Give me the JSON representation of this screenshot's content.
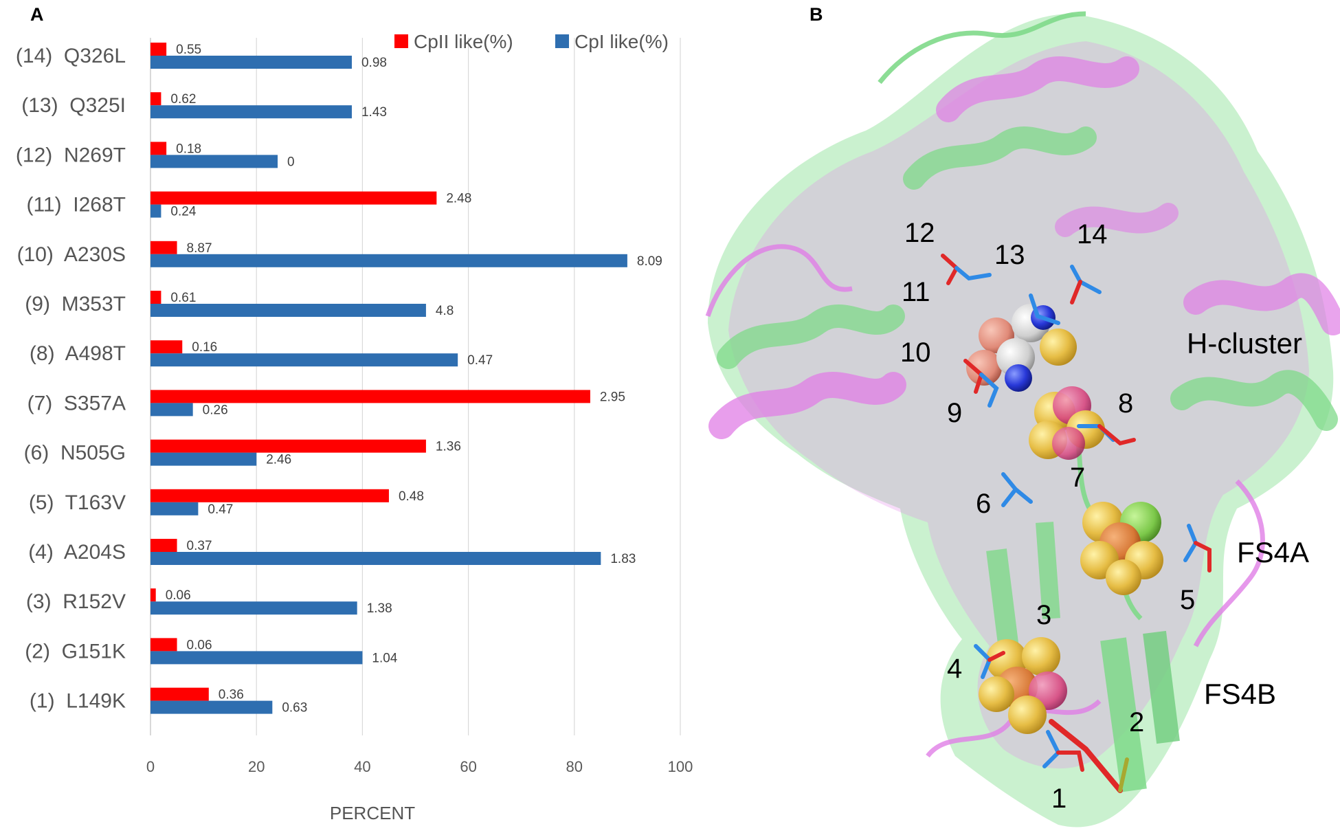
{
  "panels": {
    "a": {
      "letter": "A"
    },
    "b": {
      "letter": "B"
    }
  },
  "chart_data": {
    "type": "bar",
    "orientation": "horizontal",
    "title": "",
    "xlabel": "PERCENT",
    "ylabel": "",
    "xlim": [
      0,
      100
    ],
    "xticks": [
      0,
      20,
      40,
      60,
      80,
      100
    ],
    "grid": true,
    "legend_position": "top-right",
    "categories": [
      "(14)  Q326L",
      "(13)  Q325I",
      "(12)  N269T",
      "(11)  I268T",
      "(10)  A230S",
      "(9)  M353T",
      "(8)  A498T",
      "(7)  S357A",
      "(6)  N505G",
      "(5)  T163V",
      "(4)  A204S",
      "(3)  R152V",
      "(2)  G151K",
      "(1)  L149K"
    ],
    "series": [
      {
        "name": "CpII like(%)",
        "color": "#ff0000",
        "values": [
          3,
          2,
          3,
          54,
          5,
          2,
          6,
          83,
          52,
          45,
          5,
          1,
          5,
          11
        ],
        "labels": [
          "0.55",
          "0.62",
          "0.18",
          "2.48",
          "8.87",
          "0.61",
          "0.16",
          "2.95",
          "1.36",
          "0.48",
          "0.37",
          "0.06",
          "0.06",
          "0.36"
        ]
      },
      {
        "name": "CpI like(%)",
        "color": "#2e6eb0",
        "values": [
          38,
          38,
          24,
          2,
          90,
          52,
          58,
          8,
          20,
          9,
          85,
          39,
          40,
          23
        ],
        "labels": [
          "0.98",
          "1.43",
          "0",
          "0.24",
          "8.09",
          "4.8",
          "0.47",
          "0.26",
          "2.46",
          "0.47",
          "1.83",
          "1.38",
          "1.04",
          "0.63"
        ]
      }
    ]
  },
  "structure": {
    "colors": {
      "green": "#8fe59a",
      "magenta": "#e07ee6",
      "iron_sulfur": "#e9c14a",
      "stick_blue": "#2f8ae6",
      "stick_red": "#e02828"
    },
    "residue_labels": [
      "1",
      "2",
      "3",
      "4",
      "5",
      "6",
      "7",
      "8",
      "9",
      "10",
      "11",
      "12",
      "13",
      "14"
    ],
    "cluster_labels": {
      "h_cluster": "H-cluster",
      "fs4a": "FS4A",
      "fs4b": "FS4B"
    }
  }
}
